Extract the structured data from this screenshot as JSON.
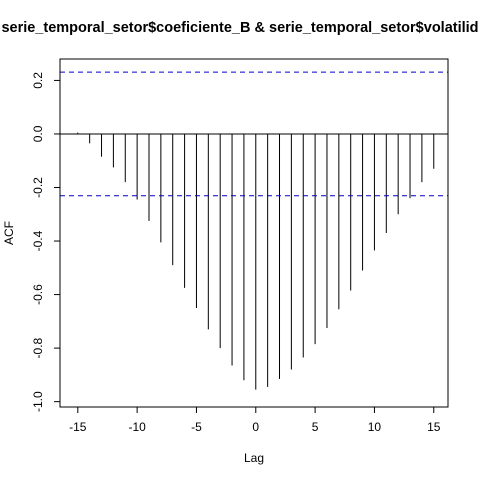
{
  "chart_data": {
    "type": "bar",
    "title": "serie_temporal_setor$coeficiente_B & serie_temporal_setor$volatilid",
    "xlabel": "Lag",
    "ylabel": "ACF",
    "xlim": [
      -16.5,
      16.2
    ],
    "ylim": [
      -1.02,
      0.28
    ],
    "x_ticks": [
      -15,
      -10,
      -5,
      0,
      5,
      10,
      15
    ],
    "y_ticks": [
      -1.0,
      -0.8,
      -0.6,
      -0.4,
      -0.2,
      0.0,
      0.2
    ],
    "y_tick_labels": [
      "-1.0",
      "-0.8",
      "-0.6",
      "-0.4",
      "-0.2",
      "0.0",
      "0.2"
    ],
    "confidence_bounds": [
      0.231,
      -0.231
    ],
    "bound_color": "#0000cc",
    "lags": [
      -15,
      -14,
      -13,
      -12,
      -11,
      -10,
      -9,
      -8,
      -7,
      -6,
      -5,
      -4,
      -3,
      -2,
      -1,
      0,
      1,
      2,
      3,
      4,
      5,
      6,
      7,
      8,
      9,
      10,
      11,
      12,
      13,
      14,
      15
    ],
    "acf": [
      0.005,
      -0.035,
      -0.085,
      -0.125,
      -0.18,
      -0.245,
      -0.325,
      -0.405,
      -0.49,
      -0.575,
      -0.65,
      -0.73,
      -0.8,
      -0.865,
      -0.92,
      -0.955,
      -0.945,
      -0.915,
      -0.88,
      -0.835,
      -0.785,
      -0.725,
      -0.655,
      -0.585,
      -0.51,
      -0.435,
      -0.37,
      -0.3,
      -0.24,
      -0.18,
      -0.13
    ],
    "grid": false,
    "legend": "none"
  }
}
